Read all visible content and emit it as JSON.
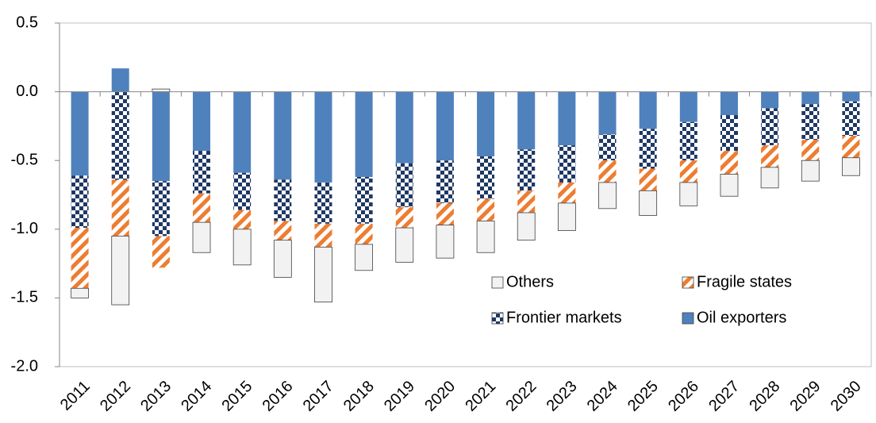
{
  "chart_data": {
    "type": "stacked-bar",
    "categories": [
      "2011",
      "2012",
      "2013",
      "2014",
      "2015",
      "2016",
      "2017",
      "2018",
      "2019",
      "2020",
      "2021",
      "2022",
      "2023",
      "2024",
      "2025",
      "2026",
      "2027",
      "2028",
      "2029",
      "2030"
    ],
    "series": [
      {
        "name": "Oil exporters",
        "color": "#4f81bd",
        "pattern": "solid",
        "values": [
          -0.61,
          0.17,
          -0.65,
          -0.43,
          -0.59,
          -0.64,
          -0.66,
          -0.62,
          -0.52,
          -0.5,
          -0.47,
          -0.42,
          -0.39,
          -0.31,
          -0.27,
          -0.22,
          -0.17,
          -0.12,
          -0.09,
          -0.07
        ]
      },
      {
        "name": "Frontier markets",
        "color": "#1f3864",
        "pattern": "checker",
        "values": [
          -0.38,
          -0.64,
          -0.4,
          -0.31,
          -0.27,
          -0.3,
          -0.3,
          -0.34,
          -0.32,
          -0.31,
          -0.31,
          -0.3,
          -0.27,
          -0.19,
          -0.29,
          -0.28,
          -0.26,
          -0.27,
          -0.26,
          -0.25
        ]
      },
      {
        "name": "Fragile states",
        "color": "#ed7d31",
        "pattern": "stripes",
        "values": [
          -0.44,
          -0.41,
          -0.23,
          -0.21,
          -0.14,
          -0.14,
          -0.17,
          -0.15,
          -0.15,
          -0.16,
          -0.16,
          -0.16,
          -0.15,
          -0.16,
          -0.16,
          -0.16,
          -0.17,
          -0.16,
          -0.15,
          -0.16
        ]
      },
      {
        "name": "Others",
        "color": "#f2f2f2",
        "pattern": "solid",
        "values": [
          -0.07,
          -0.5,
          0.02,
          -0.22,
          -0.26,
          -0.27,
          -0.4,
          -0.19,
          -0.25,
          -0.24,
          -0.23,
          -0.2,
          -0.2,
          -0.19,
          -0.18,
          -0.17,
          -0.16,
          -0.15,
          -0.15,
          -0.13
        ]
      }
    ],
    "ylim": [
      -2.0,
      0.5
    ],
    "yticks": [
      {
        "value": -2.0,
        "label": "-2.0"
      },
      {
        "value": -1.5,
        "label": "-1.5"
      },
      {
        "value": -1.0,
        "label": "-1.0"
      },
      {
        "value": -0.5,
        "label": "-0.5"
      },
      {
        "value": 0.0,
        "label": "0.0"
      },
      {
        "value": 0.5,
        "label": "0.5"
      }
    ]
  }
}
